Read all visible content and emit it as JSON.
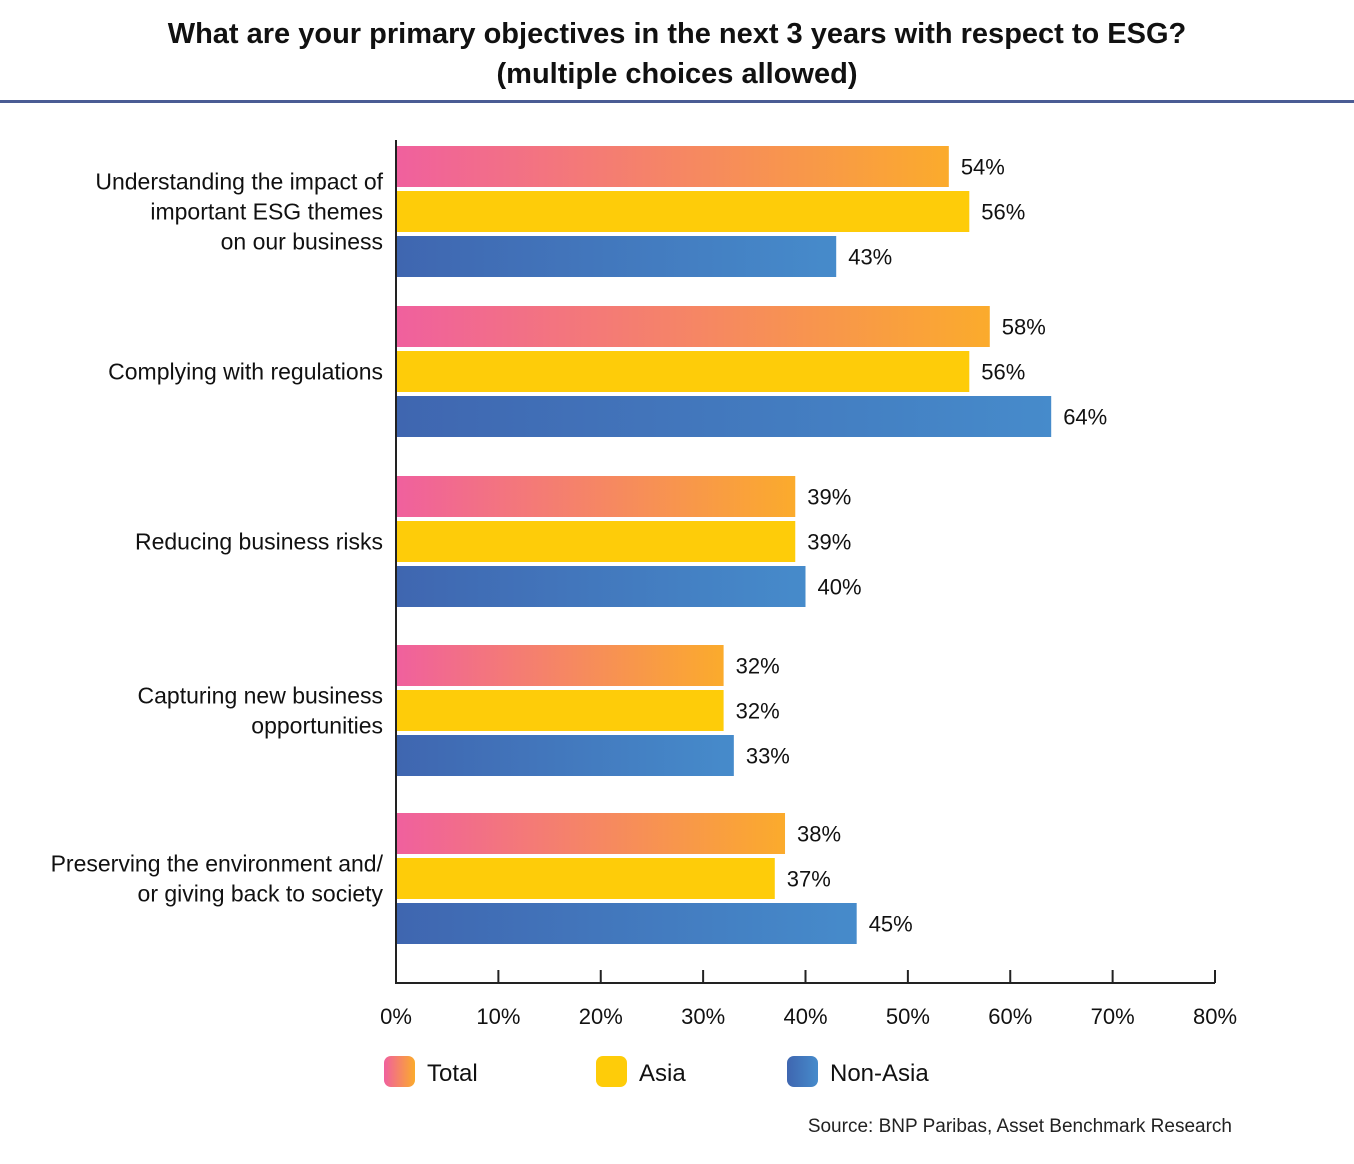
{
  "chart_data": {
    "type": "bar",
    "orientation": "horizontal",
    "title": "What are your primary objectives in the next 3 years with respect to ESG?",
    "subtitle": "(multiple choices allowed)",
    "categories": [
      [
        "Understanding the impact of",
        "important ESG themes",
        "on our business"
      ],
      [
        "Complying with regulations"
      ],
      [
        "Reducing business risks"
      ],
      [
        "Capturing new business",
        "opportunities"
      ],
      [
        "Preserving the environment and/",
        "or giving back to society"
      ]
    ],
    "series": [
      {
        "name": "Total",
        "values": [
          54,
          58,
          39,
          32,
          38
        ],
        "color": [
          "#f0609e",
          "#fbab2c"
        ]
      },
      {
        "name": "Asia",
        "values": [
          56,
          56,
          39,
          32,
          37
        ],
        "color": [
          "#fecc09",
          "#fecc09"
        ]
      },
      {
        "name": "Non-Asia",
        "values": [
          43,
          64,
          40,
          33,
          45
        ],
        "color": [
          "#3f66b0",
          "#468bcb"
        ]
      }
    ],
    "xlim": [
      0,
      80
    ],
    "xticks": [
      "0%",
      "10%",
      "20%",
      "30%",
      "40%",
      "50%",
      "60%",
      "70%",
      "80%"
    ],
    "value_suffix": "%",
    "grid": false,
    "legend_position": "bottom",
    "source": "Source: BNP Paribas, Asset Benchmark Research"
  }
}
